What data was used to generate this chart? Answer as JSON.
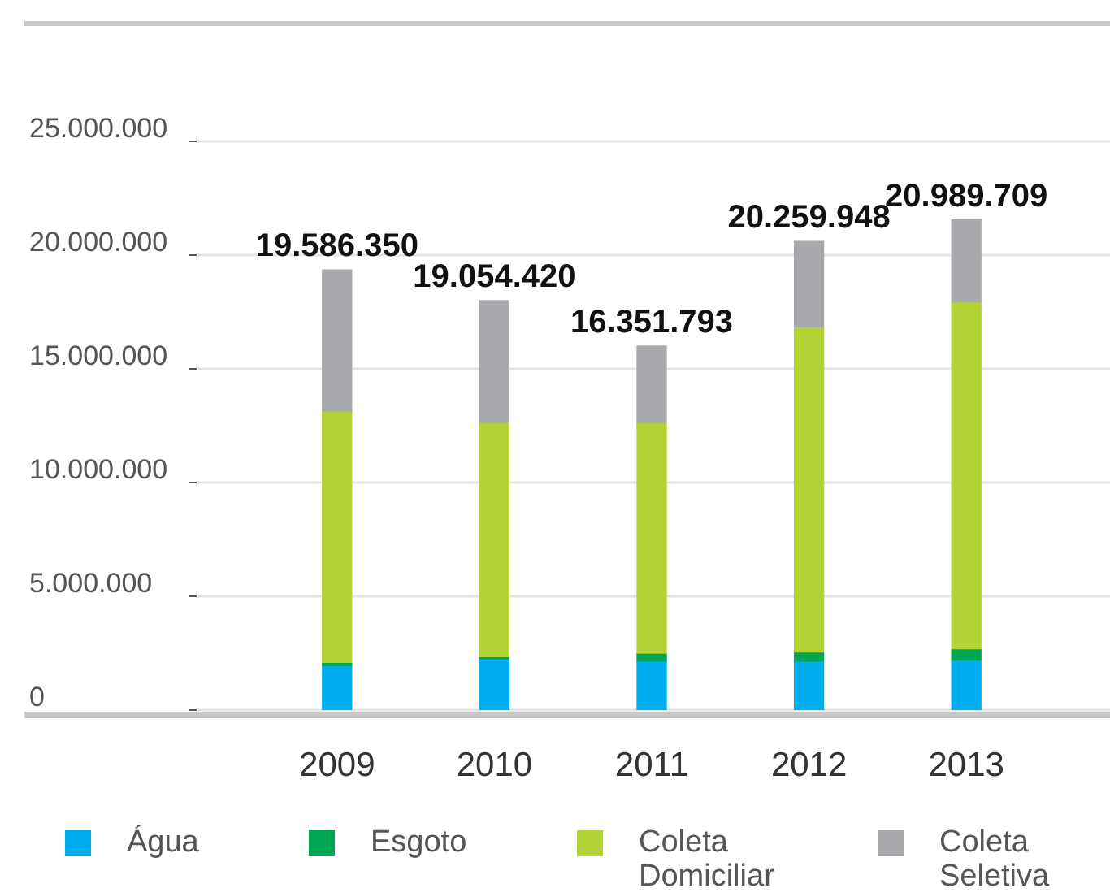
{
  "chart_data": {
    "type": "bar",
    "stacked": true,
    "categories": [
      "2009",
      "2010",
      "2011",
      "2012",
      "2013"
    ],
    "series": [
      {
        "name": "Água",
        "color": "#00aeef",
        "values": [
          1900000,
          2200000,
          2100000,
          2100000,
          2150000
        ]
      },
      {
        "name": "Esgoto",
        "color": "#00a651",
        "values": [
          150000,
          100000,
          350000,
          400000,
          500000
        ]
      },
      {
        "name": "Coleta Domiciliar",
        "color": "#b2d235",
        "values": [
          11050000,
          10300000,
          10150000,
          14300000,
          15250000
        ]
      },
      {
        "name": "Coleta Seletiva",
        "color": "#a7a9ac",
        "values": [
          6250000,
          5400000,
          3400000,
          3800000,
          3650000
        ]
      }
    ],
    "annotations": [
      {
        "text": "19.586.350",
        "x": "2009",
        "y": 19350000
      },
      {
        "text": "19.054.420",
        "x": "2010",
        "y": 18000000
      },
      {
        "text": "16.351.793",
        "x": "2011",
        "y": 16000000
      },
      {
        "text": "20.259.948",
        "x": "2012",
        "y": 20600000
      },
      {
        "text": "20.989.709",
        "x": "2013",
        "y": 21550000
      }
    ],
    "ylim": [
      0,
      25000000
    ],
    "yticks": [
      {
        "value": 0,
        "label": "0"
      },
      {
        "value": 5000000,
        "label": "5.000.000"
      },
      {
        "value": 10000000,
        "label": "10.000.000"
      },
      {
        "value": 15000000,
        "label": "15.000.000"
      },
      {
        "value": 20000000,
        "label": "20.000.000"
      },
      {
        "value": 25000000,
        "label": "25.000.000"
      }
    ],
    "grid": "y",
    "legend": "bottom"
  }
}
